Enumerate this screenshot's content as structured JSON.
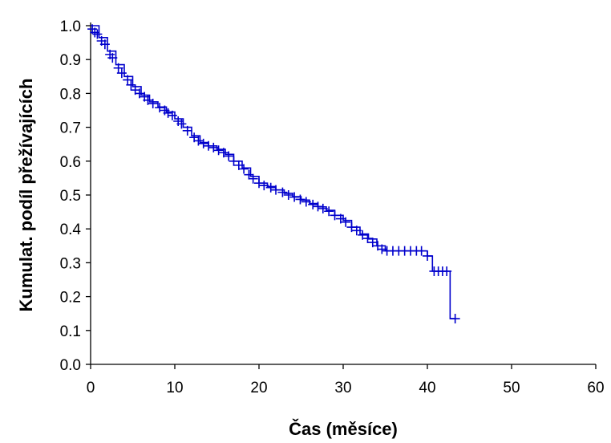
{
  "chart_data": {
    "type": "line",
    "title": "",
    "xlabel": "Čas (měsíce)",
    "ylabel": "Kumulat. podíl přežívajících",
    "xlim": [
      0,
      60
    ],
    "ylim": [
      0.0,
      1.0
    ],
    "x_ticks": [
      "0",
      "10",
      "20",
      "30",
      "40",
      "50",
      "60"
    ],
    "y_ticks": [
      "0.0",
      "0.1",
      "0.2",
      "0.3",
      "0.4",
      "0.5",
      "0.6",
      "0.7",
      "0.8",
      "0.9",
      "1.0"
    ],
    "grid": false,
    "legend": "none",
    "line_color": "#0000CC",
    "series": [
      {
        "x": [
          0,
          1,
          2,
          3,
          4,
          5,
          6,
          7,
          8,
          9,
          10,
          11,
          12,
          13,
          14,
          15,
          16,
          17,
          18,
          19,
          20,
          21,
          22,
          23,
          24,
          25,
          26,
          27,
          28,
          29,
          30,
          31,
          32,
          33,
          34,
          35,
          36,
          37,
          38,
          39,
          40,
          40.6,
          41.5,
          42.3,
          42.7,
          42.7,
          43.3
        ],
        "y": [
          1.0,
          0.965,
          0.925,
          0.885,
          0.85,
          0.82,
          0.795,
          0.775,
          0.76,
          0.745,
          0.725,
          0.7,
          0.675,
          0.655,
          0.645,
          0.635,
          0.62,
          0.6,
          0.58,
          0.555,
          0.535,
          0.525,
          0.515,
          0.505,
          0.495,
          0.485,
          0.475,
          0.465,
          0.455,
          0.44,
          0.425,
          0.405,
          0.385,
          0.37,
          0.35,
          0.335,
          0.335,
          0.335,
          0.335,
          0.335,
          0.32,
          0.275,
          0.275,
          0.275,
          0.275,
          0.135,
          0.135
        ],
        "censored": [
          [
            0.2,
            0.99
          ],
          [
            0.5,
            0.98
          ],
          [
            0.8,
            0.975
          ],
          [
            1.3,
            0.955
          ],
          [
            1.7,
            0.945
          ],
          [
            2.3,
            0.915
          ],
          [
            2.6,
            0.905
          ],
          [
            3.3,
            0.875
          ],
          [
            3.7,
            0.86
          ],
          [
            4.4,
            0.84
          ],
          [
            4.8,
            0.825
          ],
          [
            5.3,
            0.81
          ],
          [
            5.8,
            0.8
          ],
          [
            6.4,
            0.79
          ],
          [
            6.8,
            0.78
          ],
          [
            7.4,
            0.77
          ],
          [
            8.2,
            0.758
          ],
          [
            8.8,
            0.75
          ],
          [
            9.2,
            0.742
          ],
          [
            9.7,
            0.735
          ],
          [
            10.4,
            0.718
          ],
          [
            10.8,
            0.71
          ],
          [
            11.5,
            0.69
          ],
          [
            12.3,
            0.67
          ],
          [
            12.8,
            0.66
          ],
          [
            13.4,
            0.652
          ],
          [
            14.0,
            0.645
          ],
          [
            14.6,
            0.64
          ],
          [
            15.2,
            0.632
          ],
          [
            15.8,
            0.625
          ],
          [
            16.4,
            0.615
          ],
          [
            17.0,
            0.6
          ],
          [
            17.6,
            0.588
          ],
          [
            18.2,
            0.577
          ],
          [
            18.8,
            0.56
          ],
          [
            19.3,
            0.548
          ],
          [
            20.0,
            0.535
          ],
          [
            20.6,
            0.528
          ],
          [
            21.4,
            0.522
          ],
          [
            22.0,
            0.515
          ],
          [
            22.8,
            0.508
          ],
          [
            23.5,
            0.5
          ],
          [
            24.2,
            0.494
          ],
          [
            24.9,
            0.487
          ],
          [
            25.6,
            0.48
          ],
          [
            26.4,
            0.472
          ],
          [
            27.0,
            0.466
          ],
          [
            27.6,
            0.46
          ],
          [
            28.3,
            0.452
          ],
          [
            29.0,
            0.44
          ],
          [
            29.7,
            0.43
          ],
          [
            30.3,
            0.42
          ],
          [
            31.0,
            0.405
          ],
          [
            31.6,
            0.395
          ],
          [
            32.3,
            0.382
          ],
          [
            32.9,
            0.372
          ],
          [
            33.5,
            0.36
          ],
          [
            34.1,
            0.35
          ],
          [
            34.6,
            0.34
          ],
          [
            35.2,
            0.335
          ],
          [
            35.9,
            0.335
          ],
          [
            36.6,
            0.335
          ],
          [
            37.3,
            0.335
          ],
          [
            38.0,
            0.335
          ],
          [
            38.7,
            0.335
          ],
          [
            39.3,
            0.335
          ],
          [
            40.0,
            0.32
          ],
          [
            40.8,
            0.275
          ],
          [
            41.3,
            0.275
          ],
          [
            41.8,
            0.275
          ],
          [
            42.3,
            0.275
          ],
          [
            43.3,
            0.135
          ]
        ]
      }
    ]
  }
}
